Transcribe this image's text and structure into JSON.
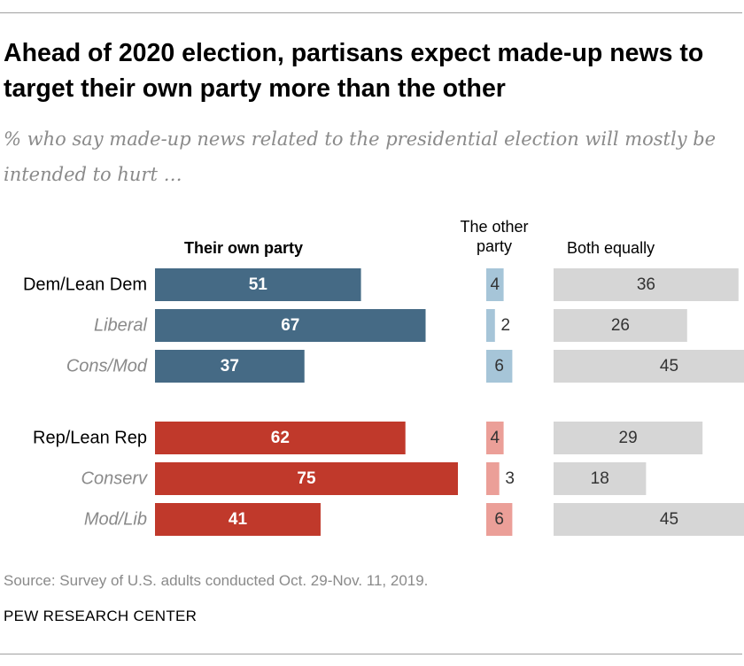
{
  "title": "Ahead of 2020 election, partisans expect made-up news to target their own party more than the other",
  "subtitle": "% who say made-up news related to the presidential election will mostly be intended to hurt …",
  "columns": {
    "own": "Their own party",
    "other_line1": "The other",
    "other_line2": "party",
    "both": "Both equally"
  },
  "source": "Source: Survey of U.S. adults conducted Oct. 29-Nov. 11, 2019.",
  "brand": "PEW RESEARCH CENTER",
  "colors": {
    "dem_dark": "#456a85",
    "dem_light": "#a6c5d8",
    "rep_dark": "#c0392b",
    "rep_light": "#eb9f98",
    "gray": "#d6d6d6"
  },
  "chart_data": {
    "type": "bar",
    "title": "Ahead of 2020 election, partisans expect made-up news to target their own party more than the other",
    "subtitle": "% who say made-up news related to the presidential election will mostly be intended to hurt …",
    "categories": [
      "Dem/Lean Dem",
      "Liberal",
      "Cons/Mod",
      "Rep/Lean Rep",
      "Conserv",
      "Mod/Lib"
    ],
    "groups": [
      "dem",
      "dem",
      "dem",
      "rep",
      "rep",
      "rep"
    ],
    "subgroup": [
      false,
      true,
      true,
      false,
      true,
      true
    ],
    "series": [
      {
        "name": "Their own party",
        "values": [
          51,
          67,
          37,
          62,
          75,
          41
        ]
      },
      {
        "name": "The other party",
        "values": [
          4,
          2,
          6,
          4,
          3,
          6
        ]
      },
      {
        "name": "Both equally",
        "values": [
          36,
          26,
          45,
          29,
          18,
          45
        ]
      }
    ],
    "ylim": [
      0,
      100
    ]
  }
}
